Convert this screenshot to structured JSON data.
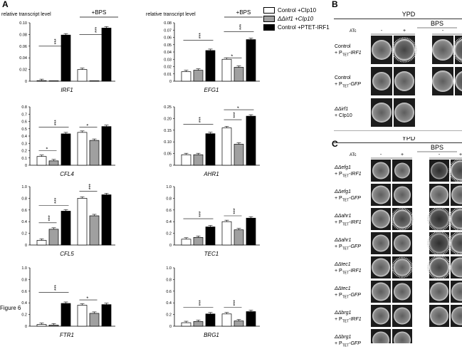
{
  "figure_label": "Figure 6",
  "panels": {
    "A": "A",
    "B": "B",
    "C": "C"
  },
  "panel_a": {
    "ylabel": "relative transcript level",
    "bps_label": "+BPS",
    "legend": [
      {
        "label": "Control +CIp10",
        "color": "#ffffff"
      },
      {
        "label": "ΔΔirf1 +CIp10",
        "color": "#a0a0a0"
      },
      {
        "label": "Control +PTET-IRF1",
        "color": "#000000"
      }
    ]
  },
  "chart_data": [
    {
      "type": "bar",
      "title": "IRF1",
      "ylim": [
        0,
        0.1
      ],
      "ticks": [
        "0",
        "0.02",
        "0.04",
        "0.06",
        "0.08",
        "0.10"
      ],
      "groups": [
        {
          "values": [
            0.001,
            0.0,
            0.079
          ]
        },
        {
          "values": [
            0.02,
            0.0,
            0.091
          ]
        }
      ],
      "sig": [
        {
          "text": "***"
        },
        {
          "text": "***"
        }
      ]
    },
    {
      "type": "bar",
      "title": "EFG1",
      "ylim": [
        0,
        0.08
      ],
      "ticks": [
        "0",
        "0.01",
        "0.02",
        "0.03",
        "0.04",
        "0.05",
        "0.06",
        "0.07",
        "0.08"
      ],
      "groups": [
        {
          "values": [
            0.013,
            0.015,
            0.042
          ]
        },
        {
          "values": [
            0.03,
            0.019,
            0.057
          ]
        }
      ],
      "sig": [
        {
          "text": "***"
        },
        {
          "text": "*"
        },
        {
          "text": "***"
        }
      ]
    },
    {
      "type": "bar",
      "title": "CFL4",
      "ylim": [
        0,
        0.8
      ],
      "ticks": [
        "0",
        "0.1",
        "0.2",
        "0.3",
        "0.4",
        "0.5",
        "0.6",
        "0.7",
        "0.8"
      ],
      "groups": [
        {
          "values": [
            0.12,
            0.06,
            0.43
          ]
        },
        {
          "values": [
            0.45,
            0.34,
            0.53
          ]
        }
      ],
      "sig": [
        {
          "text": "*"
        },
        {
          "text": "***"
        },
        {
          "text": "*"
        }
      ]
    },
    {
      "type": "bar",
      "title": "AHR1",
      "ylim": [
        0,
        0.25
      ],
      "ticks": [
        "0",
        "0.05",
        "0.10",
        "0.15",
        "0.20",
        "0.25"
      ],
      "groups": [
        {
          "values": [
            0.045,
            0.045,
            0.135
          ]
        },
        {
          "values": [
            0.16,
            0.09,
            0.21
          ]
        }
      ],
      "sig": [
        {
          "text": "***"
        },
        {
          "text": "***"
        },
        {
          "text": "*"
        }
      ]
    },
    {
      "type": "bar",
      "title": "CFL5",
      "ylim": [
        0,
        1.0
      ],
      "ticks": [
        "0",
        "0.2",
        "0.4",
        "0.6",
        "0.8",
        "1.0"
      ],
      "groups": [
        {
          "values": [
            0.08,
            0.27,
            0.58
          ]
        },
        {
          "values": [
            0.8,
            0.5,
            0.86
          ]
        }
      ],
      "sig": [
        {
          "text": "***"
        },
        {
          "text": "***"
        },
        {
          "text": "***"
        }
      ]
    },
    {
      "type": "bar",
      "title": "TEC1",
      "ylim": [
        0,
        1.0
      ],
      "ticks": [
        "0",
        "0.2",
        "0.4",
        "0.6",
        "0.8",
        "1.0"
      ],
      "groups": [
        {
          "values": [
            0.1,
            0.13,
            0.31
          ]
        },
        {
          "values": [
            0.4,
            0.26,
            0.46
          ]
        }
      ],
      "sig": [
        {
          "text": "***"
        },
        {
          "text": "***"
        }
      ]
    },
    {
      "type": "bar",
      "title": "FTR1",
      "ylim": [
        0,
        1.0
      ],
      "ticks": [
        "0",
        "0.2",
        "0.4",
        "0.6",
        "0.8",
        "1.0"
      ],
      "groups": [
        {
          "values": [
            0.03,
            0.02,
            0.39
          ]
        },
        {
          "values": [
            0.36,
            0.22,
            0.37
          ]
        }
      ],
      "sig": [
        {
          "text": "***"
        },
        {
          "text": "*"
        }
      ]
    },
    {
      "type": "bar",
      "title": "BRG1",
      "ylim": [
        0,
        1.0
      ],
      "ticks": [
        "0",
        "0.2",
        "0.4",
        "0.6",
        "0.8",
        "1.0"
      ],
      "groups": [
        {
          "values": [
            0.06,
            0.08,
            0.21
          ]
        },
        {
          "values": [
            0.21,
            0.09,
            0.25
          ]
        }
      ],
      "sig": [
        {
          "text": "***"
        },
        {
          "text": "***"
        }
      ]
    }
  ],
  "panel_b": {
    "ypd": "YPD",
    "bps": "BPS",
    "atc": "ATc",
    "minus": "-",
    "plus": "+",
    "rows": [
      {
        "line1": "Control",
        "line2pre": "+ P",
        "sub": "TET",
        "line2post": "-IRF1",
        "italic": false
      },
      {
        "line1": "Control",
        "line2pre": "+ P",
        "sub": "TET",
        "line2post": "-GFP",
        "italic": false
      },
      {
        "line1": "ΔΔirf1",
        "line2pre": "+ CIp10",
        "sub": "",
        "line2post": "",
        "italic": true
      }
    ]
  },
  "panel_c": {
    "ypd": "YPD",
    "bps": "BPS",
    "atc": "ATc",
    "minus": "-",
    "plus": "+",
    "rows": [
      {
        "line1": "ΔΔefg1",
        "line2pre": "+ P",
        "sub": "TET",
        "line2post": "-IRF1"
      },
      {
        "line1": "ΔΔefg1",
        "line2pre": "+ P",
        "sub": "TET",
        "line2post": "-GFP"
      },
      {
        "line1": "ΔΔahr1",
        "line2pre": "+ P",
        "sub": "TET",
        "line2post": "-IRF1"
      },
      {
        "line1": "ΔΔahr1",
        "line2pre": "+ P",
        "sub": "TET",
        "line2post": "-GFP"
      },
      {
        "line1": "ΔΔtec1",
        "line2pre": "+ P",
        "sub": "TET",
        "line2post": "-IRF1"
      },
      {
        "line1": "ΔΔtec1",
        "line2pre": "+ P",
        "sub": "TET",
        "line2post": "-GFP"
      },
      {
        "line1": "ΔΔbrg1",
        "line2pre": "+ P",
        "sub": "TET",
        "line2post": "-IRF1"
      },
      {
        "line1": "ΔΔbrg1",
        "line2pre": "+ P",
        "sub": "TET",
        "line2post": "-GFP"
      }
    ]
  }
}
